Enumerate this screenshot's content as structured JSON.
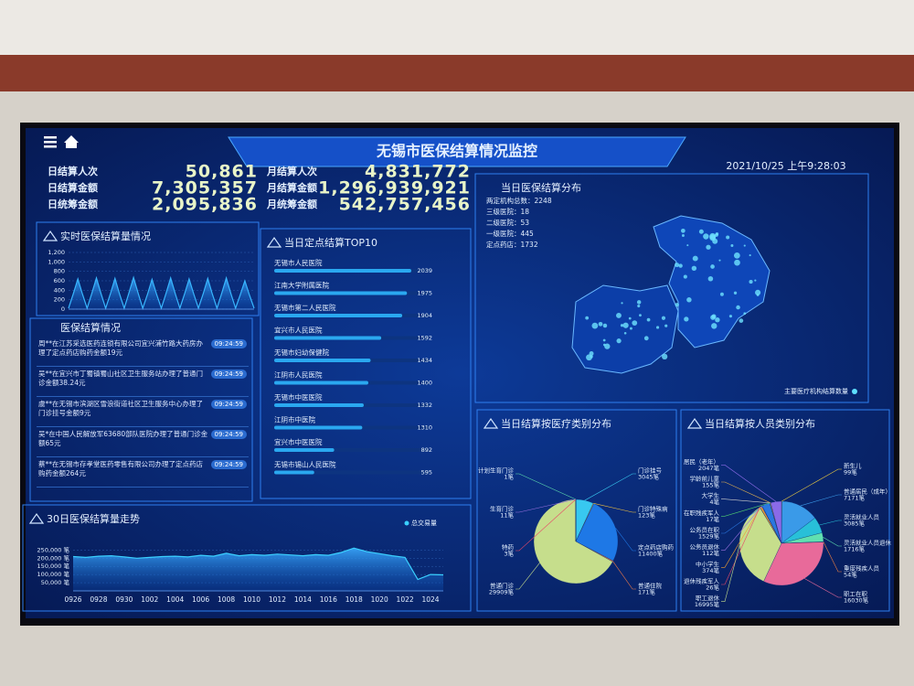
{
  "header": {
    "title": "无锡市医保结算情况监控",
    "datetime": "2021/10/25 上午9:28:03"
  },
  "stats": [
    {
      "label": "日结算人次",
      "value": "50,861"
    },
    {
      "label": "日结算金额",
      "value": "7,305,357"
    },
    {
      "label": "日统筹金额",
      "value": "2,095,836"
    },
    {
      "label": "月结算人次",
      "value": "4,831,772"
    },
    {
      "label": "月结算金额",
      "value": "1,296,939,921"
    },
    {
      "label": "月统筹金额",
      "value": "542,757,456"
    }
  ],
  "records": {
    "title": "医保结算情况",
    "items": [
      {
        "text": "周**在江苏采选医药连锁有限公司宜兴浦竹路大药房办理了定点药店购药金额19元",
        "time": "09:24:59"
      },
      {
        "text": "吴**在宜兴市丁蜀镇蜀山社区卫生服务站办理了普通门诊金额38.24元",
        "time": "09:24:59"
      },
      {
        "text": "虞**在无锡市滨湖区雪浪街道社区卫生服务中心办理了门诊挂号金额9元",
        "time": "09:24:59"
      },
      {
        "text": "吴*在中国人民解放军63680部队医院办理了普通门诊金额65元",
        "time": "09:24:59"
      },
      {
        "text": "蔡**在无锡市存孝堂医药零售有限公司办理了定点药店购药金额264元",
        "time": "09:24:59"
      }
    ]
  },
  "map": {
    "title": "当日医保结算分布",
    "info": [
      "两定机构总数：2248",
      "三级医院：18",
      "二级医院：53",
      "一级医院：445",
      "定点药店：1732"
    ],
    "legend": "主要医疗机构结算数量"
  },
  "chart_data": [
    {
      "type": "area",
      "title": "实时医保结算量情况",
      "color": "#38b6ff",
      "values": [
        20,
        320,
        640,
        320,
        20,
        330,
        660,
        330,
        20,
        320,
        650,
        320,
        20,
        340,
        670,
        340,
        20,
        310,
        630,
        310,
        20,
        330,
        660,
        330,
        20,
        320,
        640,
        320,
        20,
        320,
        650,
        320,
        20,
        330,
        660,
        330,
        20,
        300,
        600,
        300,
        20
      ],
      "ylim": [
        0,
        1200
      ],
      "yticks": [
        0,
        200,
        400,
        600,
        800,
        {
          "value": 1000,
          "label": "1,000"
        },
        {
          "value": 1200,
          "label": "1,200"
        }
      ]
    },
    {
      "type": "bar",
      "title": "当日定点结算TOP10",
      "orientation": "horizontal",
      "color": "#2aa8f0",
      "categories": [
        "无锡市人民医院",
        "江南大学附属医院",
        "无锡市第二人民医院",
        "宜兴市人民医院",
        "无锡市妇幼保健院",
        "江阴市人民医院",
        "无锡市中医医院",
        "江阴市中医院",
        "宜兴市中医医院",
        "无锡市锡山人民医院"
      ],
      "values": [
        2039,
        1975,
        1904,
        1592,
        1434,
        1400,
        1332,
        1310,
        892,
        595
      ]
    },
    {
      "type": "pie",
      "title": "当日结算按医疗类别分布",
      "categories": [
        "门诊挂号",
        "门诊特殊病",
        "定点药店购药",
        "普通住院",
        "普通门诊",
        "特药",
        "生育门诊",
        "计划生育门诊"
      ],
      "values": [
        3045,
        123,
        11400,
        171,
        29909,
        3,
        11,
        1
      ],
      "value_labels": [
        "3045笔",
        "123笔",
        "11400笔",
        "171笔",
        "29909笔",
        "3笔",
        "11笔",
        "1笔"
      ],
      "colors": [
        "#38c8f0",
        "#f0c040",
        "#1e78e6",
        "#e87848",
        "#c6de8c",
        "#e84868",
        "#9a70e0",
        "#60e0b0"
      ]
    },
    {
      "type": "pie",
      "title": "当日结算按人员类别分布",
      "categories": [
        "新生儿",
        "普通居民（成年）",
        "灵活就业人员",
        "灵活就业人员退休",
        "重度残疾人员",
        "职工在职",
        "职工退休",
        "退休残疾军人",
        "中小学生",
        "公务员退休",
        "公务员在职",
        "在职残疾军人",
        "大学生",
        "学龄前儿童",
        "居民（老年）"
      ],
      "values": [
        99,
        7171,
        3085,
        1716,
        54,
        16030,
        16995,
        26,
        374,
        112,
        1529,
        17,
        4,
        155,
        2047
      ],
      "value_labels": [
        "99笔",
        "7171笔",
        "3085笔",
        "1716笔",
        "54笔",
        "16030笔",
        "16995笔",
        "26笔",
        "374笔",
        "112笔",
        "1529笔",
        "17笔",
        "4笔",
        "155笔",
        "2047笔"
      ],
      "colors": [
        "#f0d040",
        "#3a9ae8",
        "#28c0d8",
        "#60e0b0",
        "#f08040",
        "#e86a9a",
        "#c6de8c",
        "#e84868",
        "#f0a030",
        "#9a70e0",
        "#2a78e0",
        "#50d070",
        "#d0d0d0",
        "#e0b050",
        "#8a6ae8"
      ]
    },
    {
      "type": "area",
      "title": "30日医保结算量走势",
      "categories": [
        "0926",
        null,
        "0928",
        null,
        "0930",
        null,
        "1002",
        null,
        "1004",
        null,
        "1006",
        null,
        "1008",
        null,
        "1010",
        null,
        "1012",
        null,
        "1014",
        null,
        "1016",
        null,
        "1018",
        null,
        "1020",
        null,
        "1022",
        null,
        "1024",
        null
      ],
      "series": [
        {
          "name": "总交易量",
          "color": "#3ad0ff",
          "values": [
            210000,
            205000,
            212000,
            215000,
            208000,
            200000,
            205000,
            210000,
            212000,
            208000,
            218000,
            212000,
            230000,
            215000,
            222000,
            218000,
            225000,
            220000,
            215000,
            222000,
            218000,
            235000,
            262000,
            240000,
            228000,
            215000,
            205000,
            70000,
            100000,
            98000
          ]
        }
      ],
      "ylim": [
        0,
        280000
      ],
      "yticks": [
        {
          "value": 50000,
          "label": "50,000 笔"
        },
        {
          "value": 100000,
          "label": "100,000 笔"
        },
        {
          "value": 150000,
          "label": "150,000 笔"
        },
        {
          "value": 200000,
          "label": "200,000 笔"
        },
        {
          "value": 250000,
          "label": "250,000 笔"
        }
      ]
    }
  ]
}
